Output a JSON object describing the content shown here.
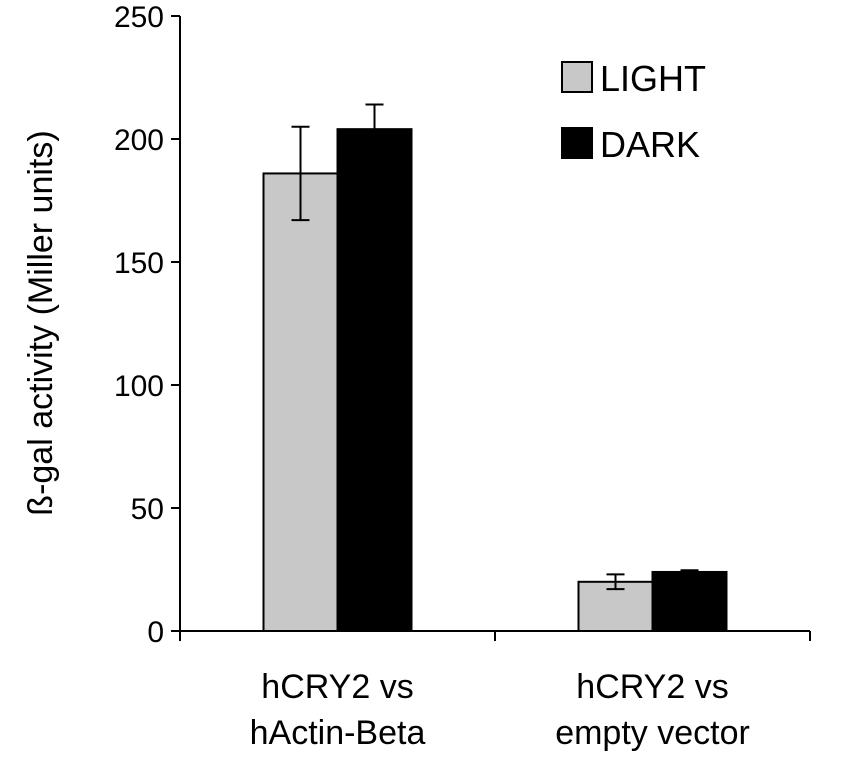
{
  "chart_data": {
    "type": "bar",
    "title": "",
    "ylabel": "ß-gal activity (Miller units)",
    "xlabel": "",
    "ylim": [
      0,
      250
    ],
    "yticks": [
      0,
      50,
      100,
      150,
      200,
      250
    ],
    "categories": [
      [
        "hCRY2 vs",
        "hActin-Beta"
      ],
      [
        "hCRY2 vs",
        "empty vector"
      ]
    ],
    "series": [
      {
        "name": "LIGHT",
        "color": "#c8c8c8",
        "values": [
          186,
          20
        ],
        "errors": [
          19,
          3
        ]
      },
      {
        "name": "DARK",
        "color": "#000000",
        "values": [
          204,
          24
        ],
        "errors": [
          10,
          0.7
        ]
      }
    ],
    "legend_position": "top-right",
    "grid": false
  }
}
